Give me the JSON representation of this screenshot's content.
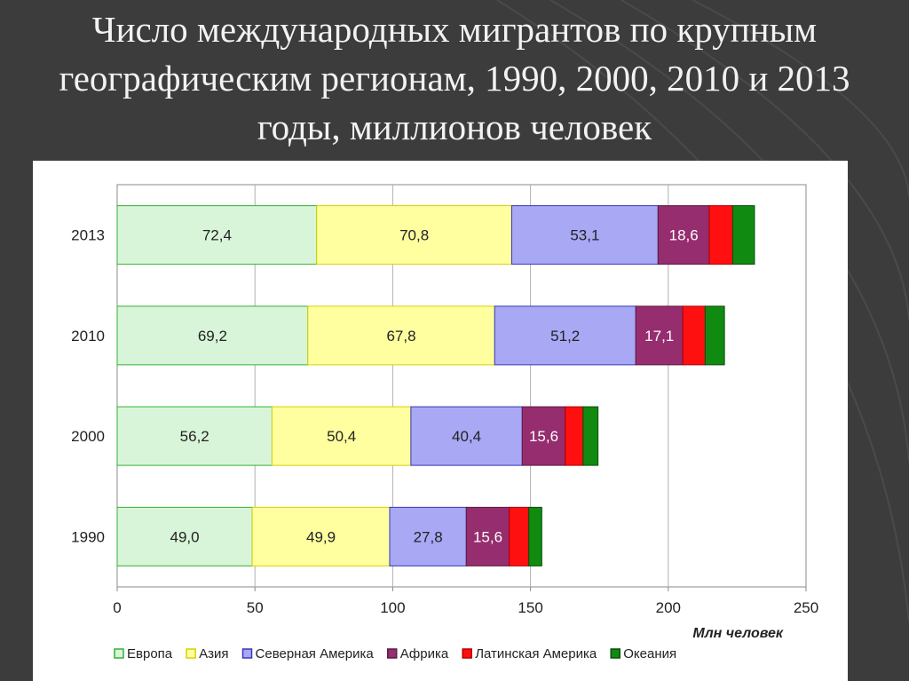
{
  "slide": {
    "title_lines": [
      "Число международных мигрантов по крупным",
      "географическим регионам, 1990, 2000, 2010 и 2013",
      "годы, миллионов человек"
    ],
    "background_color": "#3c3c3c"
  },
  "chart_data": {
    "type": "bar",
    "orientation": "horizontal",
    "stacked": true,
    "categories": [
      "2013",
      "2010",
      "2000",
      "1990"
    ],
    "series": [
      {
        "name": "Европа",
        "color": "#d9f5d9",
        "border": "#33b133",
        "values": [
          72.4,
          69.2,
          56.2,
          49.0
        ],
        "labels": [
          "72,4",
          "69,2",
          "56,2",
          "49,0"
        ]
      },
      {
        "name": "Азия",
        "color": "#ffffa0",
        "border": "#d8d000",
        "values": [
          70.8,
          67.8,
          50.4,
          49.9
        ],
        "labels": [
          "70,8",
          "67,8",
          "50,4",
          "49,9"
        ]
      },
      {
        "name": "Северная Америка",
        "color": "#a8a8f5",
        "border": "#3838b8",
        "values": [
          53.1,
          51.2,
          40.4,
          27.8
        ],
        "labels": [
          "53,1",
          "51,2",
          "40,4",
          "27,8"
        ]
      },
      {
        "name": "Африка",
        "color": "#962d6e",
        "border": "#5a1a42",
        "values": [
          18.6,
          17.1,
          15.6,
          15.6
        ],
        "labels": [
          "18,6",
          "17,1",
          "15,6",
          "15,6"
        ]
      },
      {
        "name": "Латинская Америка",
        "color": "#ff1010",
        "border": "#b00000",
        "values": [
          8.5,
          8.1,
          6.5,
          7.1
        ],
        "labels": [
          "",
          "",
          "",
          ""
        ]
      },
      {
        "name": "Океания",
        "color": "#118a11",
        "border": "#0a4d0a",
        "values": [
          7.9,
          7.0,
          5.4,
          4.7
        ],
        "labels": [
          "",
          "",
          "",
          ""
        ]
      }
    ],
    "xlim": [
      0,
      250
    ],
    "xticks": [
      0,
      50,
      100,
      150,
      200,
      250
    ],
    "xlabel": "Млн человек",
    "grid": true,
    "legend_position": "bottom"
  }
}
